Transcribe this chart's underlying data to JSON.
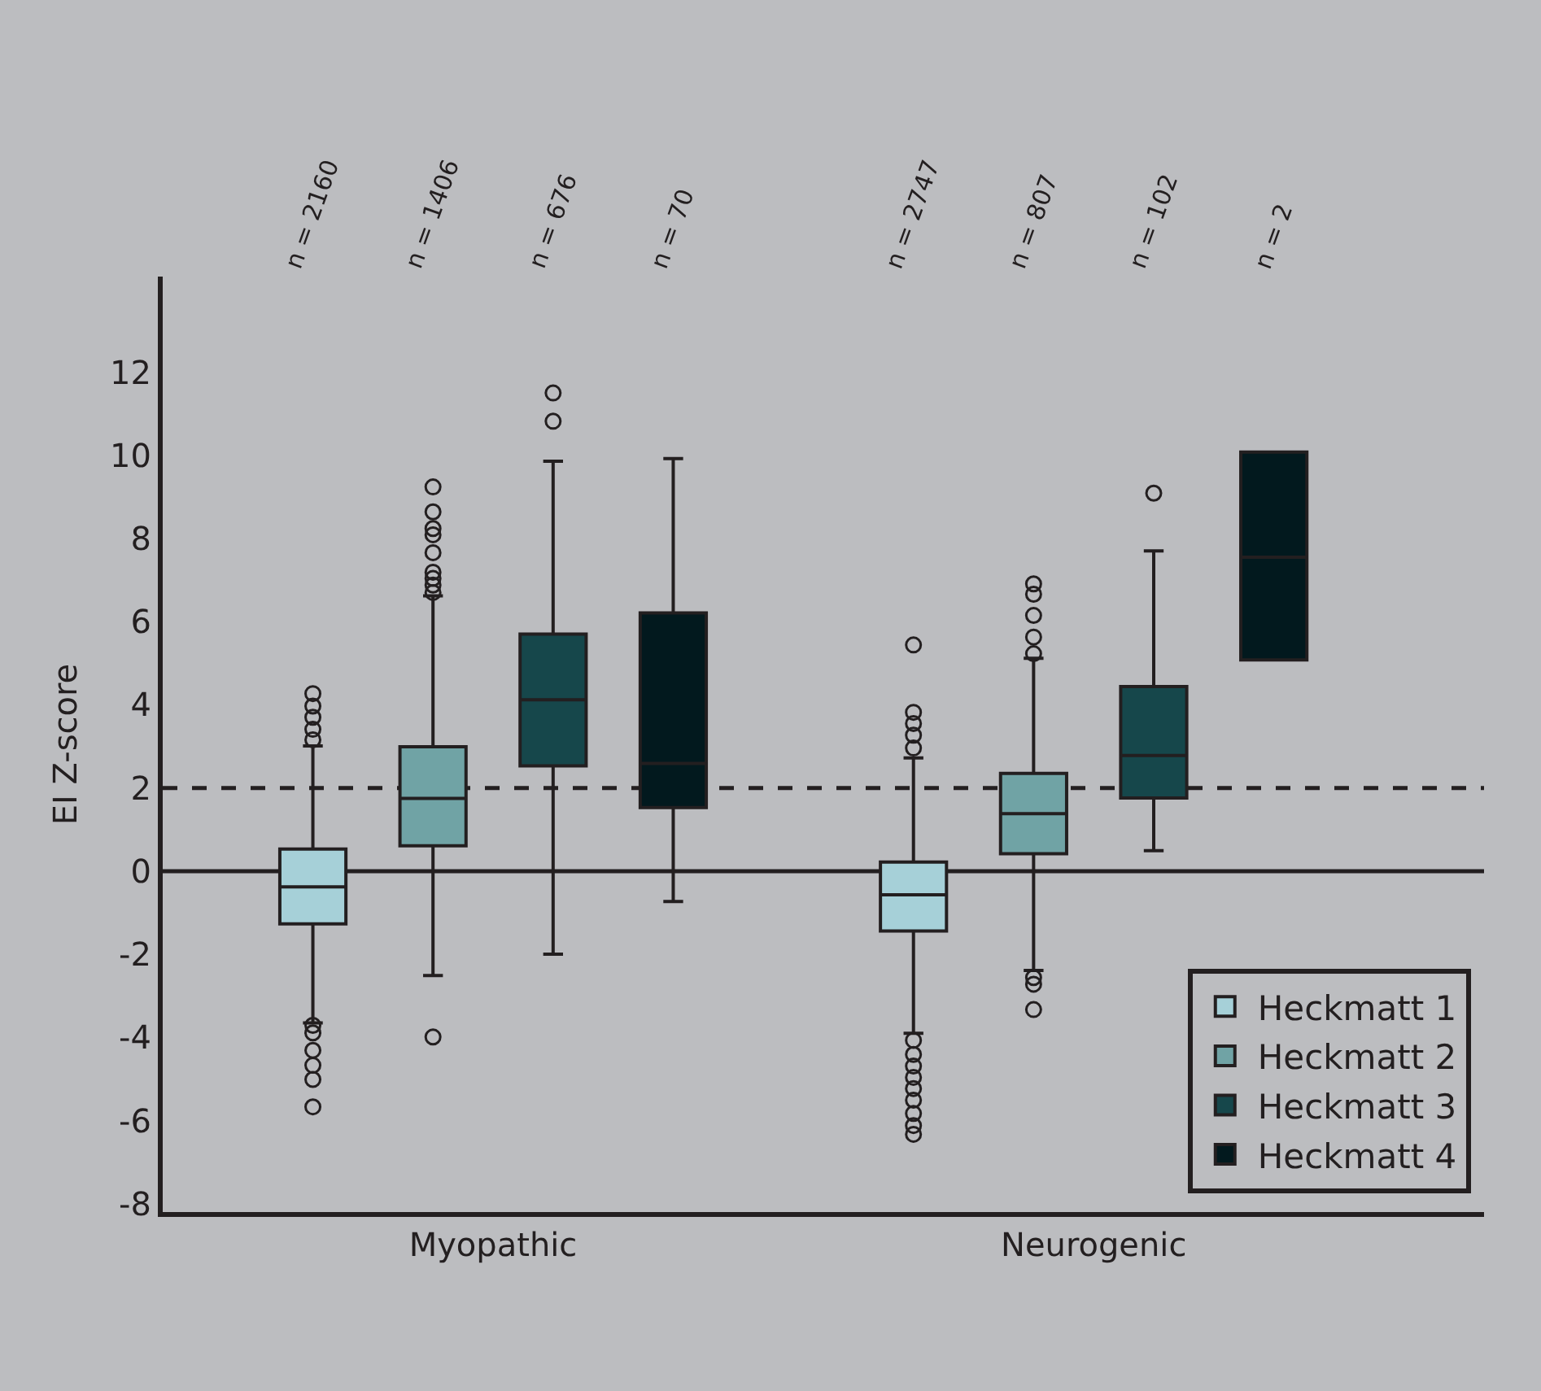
{
  "chart_data": {
    "type": "box",
    "ylabel": "EI Z-score",
    "categories": [
      "Myopathic",
      "Neurogenic"
    ],
    "ylim": [
      -8.2,
      14.3
    ],
    "yticks": [
      -8,
      -6,
      -4,
      -2,
      0,
      2,
      4,
      6,
      8,
      10,
      12
    ],
    "grid": false,
    "legend": "bottom right",
    "marker": "circle",
    "series": [
      {
        "name": "Heckmatt 1",
        "color": "#a6d0d8",
        "boxes": [
          {
            "low": -3.65,
            "q1": -1.27,
            "median": -0.38,
            "q3": 0.53,
            "high": 3.01,
            "outliers": [
              4.27,
              3.97,
              3.7,
              3.41,
              3.16,
              -3.71,
              -3.89,
              -4.31,
              -4.67,
              -5.01,
              -5.67
            ]
          },
          {
            "low": -3.9,
            "q1": -1.44,
            "median": -0.57,
            "q3": 0.22,
            "high": 2.72,
            "outliers": [
              5.44,
              3.82,
              3.55,
              3.27,
              2.96,
              -4.07,
              -4.41,
              -4.69,
              -4.96,
              -5.23,
              -5.51,
              -5.83,
              -6.12,
              -6.33
            ]
          }
        ]
      },
      {
        "name": "Heckmatt 2",
        "color": "#70a3a5",
        "boxes": [
          {
            "low": -2.51,
            "q1": 0.61,
            "median": 1.75,
            "q3": 2.99,
            "high": 6.62,
            "outliers": [
              9.24,
              8.64,
              8.24,
              8.09,
              7.66,
              7.19,
              7.04,
              6.88,
              6.7,
              -3.99
            ]
          },
          {
            "low": -2.39,
            "q1": 0.42,
            "median": 1.38,
            "q3": 2.35,
            "high": 5.12,
            "outliers": [
              6.91,
              6.66,
              6.15,
              5.63,
              5.23,
              -2.56,
              -2.72,
              -3.33
            ]
          }
        ]
      },
      {
        "name": "Heckmatt 3",
        "color": "#16474b",
        "boxes": [
          {
            "low": -2.0,
            "q1": 2.53,
            "median": 4.12,
            "q3": 5.7,
            "high": 9.86,
            "outliers": [
              11.5,
              10.82
            ]
          },
          {
            "low": 0.49,
            "q1": 1.76,
            "median": 2.78,
            "q3": 4.44,
            "high": 7.7,
            "outliers": [
              9.09
            ]
          }
        ]
      },
      {
        "name": "Heckmatt 4",
        "color": "#02191e",
        "boxes": [
          {
            "low": -0.73,
            "q1": 1.53,
            "median": 2.59,
            "q3": 6.21,
            "high": 9.92
          },
          {
            "low": 5.08,
            "q1": 5.08,
            "median": 7.55,
            "q3": 10.08,
            "high": 10.08
          }
        ]
      }
    ],
    "ref_lines": [
      {
        "axis": "y",
        "value": 0,
        "color": "#231f20",
        "line_style": "solid"
      },
      {
        "axis": "y",
        "value": 2,
        "color": "#231f20",
        "line_style": "dashed"
      }
    ],
    "annotations": [
      "n = 2160",
      "n = 1406",
      "n = 676",
      "n = 70",
      "n = 2747",
      "n = 807",
      "n = 102",
      "n = 2"
    ]
  }
}
